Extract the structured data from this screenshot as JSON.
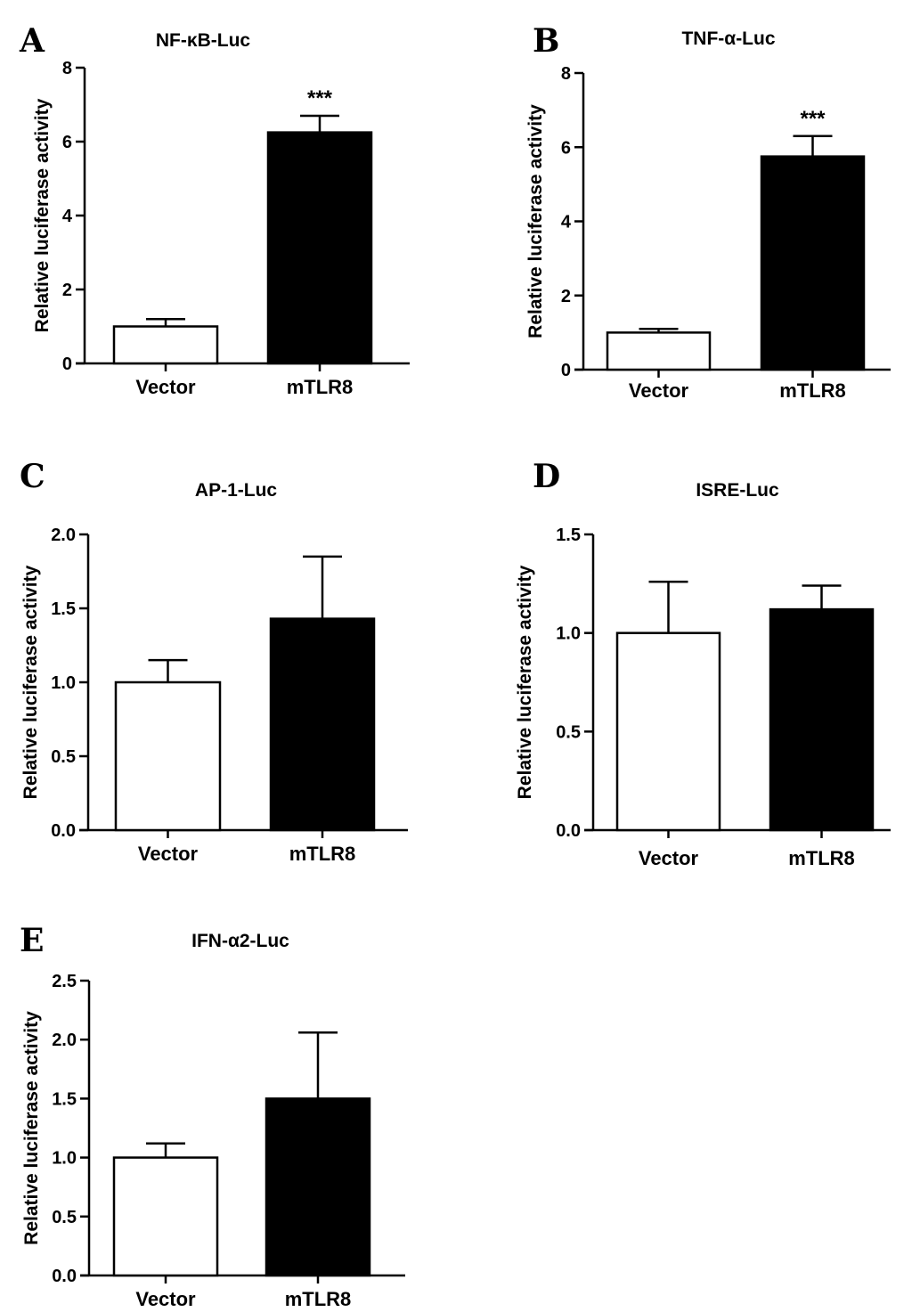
{
  "chart_data": [
    {
      "panel": "A",
      "type": "bar",
      "title": "NF-κB-Luc",
      "ylabel": "Relative luciferase activity",
      "xlabel": "",
      "categories": [
        "Vector",
        "mTLR8"
      ],
      "values": [
        1.0,
        6.25
      ],
      "errors": [
        0.2,
        0.45
      ],
      "fills": [
        "#ffffff",
        "#000000"
      ],
      "ylim": [
        0,
        8
      ],
      "yticks": [
        0,
        2,
        4,
        6,
        8
      ],
      "tick_labels": [
        "0",
        "2",
        "4",
        "6",
        "8"
      ],
      "annotations": [
        "",
        "***"
      ]
    },
    {
      "panel": "B",
      "type": "bar",
      "title": "TNF-α-Luc",
      "ylabel": "Relative luciferase activity",
      "xlabel": "",
      "categories": [
        "Vector",
        "mTLR8"
      ],
      "values": [
        1.0,
        5.75
      ],
      "errors": [
        0.1,
        0.55
      ],
      "fills": [
        "#ffffff",
        "#000000"
      ],
      "ylim": [
        0,
        8
      ],
      "yticks": [
        0,
        2,
        4,
        6,
        8
      ],
      "tick_labels": [
        "0",
        "2",
        "4",
        "6",
        "8"
      ],
      "annotations": [
        "",
        "***"
      ]
    },
    {
      "panel": "C",
      "type": "bar",
      "title": "AP-1-Luc",
      "ylabel": "Relative luciferase activity",
      "xlabel": "",
      "categories": [
        "Vector",
        "mTLR8"
      ],
      "values": [
        1.0,
        1.43
      ],
      "errors": [
        0.15,
        0.42
      ],
      "fills": [
        "#ffffff",
        "#000000"
      ],
      "ylim": [
        0,
        2
      ],
      "yticks": [
        0,
        0.5,
        1.0,
        1.5,
        2.0
      ],
      "tick_labels": [
        "0.0",
        "0.5",
        "1.0",
        "1.5",
        "2.0"
      ],
      "annotations": [
        "",
        ""
      ]
    },
    {
      "panel": "D",
      "type": "bar",
      "title": "ISRE-Luc",
      "ylabel": "Relative luciferase activity",
      "xlabel": "",
      "categories": [
        "Vector",
        "mTLR8"
      ],
      "values": [
        1.0,
        1.12
      ],
      "errors": [
        0.26,
        0.12
      ],
      "fills": [
        "#ffffff",
        "#000000"
      ],
      "ylim": [
        0,
        1.5
      ],
      "yticks": [
        0,
        0.5,
        1.0,
        1.5
      ],
      "tick_labels": [
        "0.0",
        "0.5",
        "1.0",
        "1.5"
      ],
      "annotations": [
        "",
        ""
      ]
    },
    {
      "panel": "E",
      "type": "bar",
      "title": "IFN-α2-Luc",
      "ylabel": "Relative luciferase activity",
      "xlabel": "",
      "categories": [
        "Vector",
        "mTLR8"
      ],
      "values": [
        1.0,
        1.5
      ],
      "errors": [
        0.12,
        0.56
      ],
      "fills": [
        "#ffffff",
        "#000000"
      ],
      "ylim": [
        0,
        2.5
      ],
      "yticks": [
        0,
        0.5,
        1.0,
        1.5,
        2.0,
        2.5
      ],
      "tick_labels": [
        "0.0",
        "0.5",
        "1.0",
        "1.5",
        "2.0",
        "2.5"
      ],
      "annotations": [
        "",
        ""
      ]
    }
  ]
}
